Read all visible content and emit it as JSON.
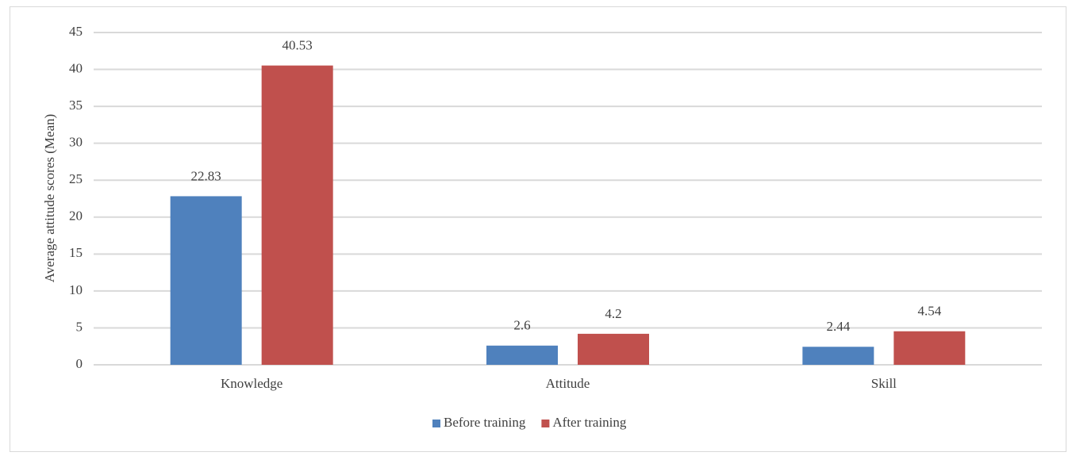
{
  "chart_data": {
    "type": "bar",
    "y_label": "Average attitude scores (Mean)",
    "categories": [
      "Knowledge",
      "Attitude",
      "Skill"
    ],
    "series": [
      {
        "name": "Before training",
        "color": "#4f81bd",
        "values": [
          22.83,
          2.6,
          2.44
        ]
      },
      {
        "name": "After training",
        "color": "#c0504d",
        "values": [
          40.53,
          4.2,
          4.54
        ]
      }
    ],
    "ylim": [
      0,
      45
    ],
    "yticks": [
      0,
      5,
      10,
      15,
      20,
      25,
      30,
      35,
      40,
      45
    ],
    "grid": true,
    "legend": "bottom"
  }
}
